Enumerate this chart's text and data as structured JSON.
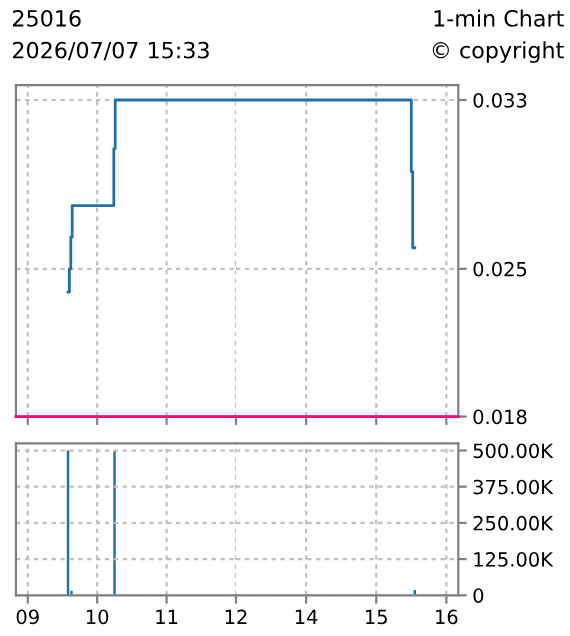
{
  "chart_data": [
    {
      "type": "step",
      "title": "25016",
      "subtitle": "2026/07/07 15:33",
      "annotations": [
        "1-min Chart",
        "© copyright"
      ],
      "x": [
        9.58,
        9.6,
        9.62,
        9.64,
        10.24,
        10.26,
        12
      ],
      "series": [
        {
          "color": "#1f6fa8",
          "values": [
            0.0239,
            0.025,
            0.0265,
            0.028,
            0.0307,
            0.033,
            0.033
          ]
        }
      ],
      "xlim": [
        8.83,
        12
      ],
      "xticks": [
        {
          "value": 9,
          "label": null
        },
        {
          "value": 10,
          "label": null
        },
        {
          "value": 11,
          "label": null
        },
        {
          "value": 12,
          "label": null
        }
      ],
      "ylim": [
        0.018,
        0.0337
      ],
      "yticks": [
        {
          "value": 0.018,
          "label": null
        },
        {
          "value": 0.025,
          "label": null
        },
        {
          "value": 0.033,
          "label": null
        }
      ],
      "tick_labels": false,
      "grid": true,
      "ref_lines": [
        {
          "axis": "y",
          "value": 0.018,
          "color": "#ff0080"
        }
      ]
    },
    {
      "type": "step",
      "x": [
        13,
        15.5,
        15.52,
        15.55
      ],
      "series": [
        {
          "color": "#1f6fa8",
          "values": [
            0.033,
            0.0296,
            0.026,
            0.026
          ]
        }
      ],
      "xlim": [
        13,
        16.17
      ],
      "xticks": [
        {
          "value": 14,
          "label": null
        },
        {
          "value": 15,
          "label": null
        },
        {
          "value": 16,
          "label": null
        }
      ],
      "ylim": [
        0.018,
        0.0337
      ],
      "yticks": [
        0.018,
        0.025,
        0.033
      ],
      "tick_labels": "y",
      "grid": true,
      "ref_lines": [
        {
          "axis": "y",
          "value": 0.018,
          "color": "#ff0080"
        }
      ]
    },
    {
      "type": "bar",
      "x": [
        9.58,
        9.63,
        10.25
      ],
      "series": [
        {
          "color": "#1f6fa8",
          "values": [
            500000,
            16000,
            500000
          ]
        }
      ],
      "xlim": [
        8.83,
        12
      ],
      "xticks": [
        {
          "value": 9,
          "label": "09"
        },
        10,
        11,
        12
      ],
      "ylim": [
        0,
        525000
      ],
      "yticks": [
        {
          "value": 0,
          "label": null
        },
        {
          "value": 125000,
          "label": null
        },
        {
          "value": 250000,
          "label": null
        },
        {
          "value": 375000,
          "label": null
        },
        {
          "value": 500000,
          "label": null
        }
      ],
      "tick_labels": "x",
      "grid": true
    },
    {
      "type": "bar",
      "x": [
        15.55
      ],
      "series": [
        {
          "color": "#1f6fa8",
          "values": [
            18000
          ]
        }
      ],
      "xlim": [
        13,
        16.17
      ],
      "xticks": [
        14,
        15,
        16
      ],
      "ylim": [
        0,
        525000
      ],
      "yticks": [
        {
          "value": 0,
          "label": "0"
        },
        {
          "value": 125000,
          "label": "125.00K"
        },
        {
          "value": 250000,
          "label": "250.00K"
        },
        {
          "value": 375000,
          "label": "375.00K"
        },
        {
          "value": 500000,
          "label": "500.00K"
        }
      ],
      "grid": true
    }
  ]
}
